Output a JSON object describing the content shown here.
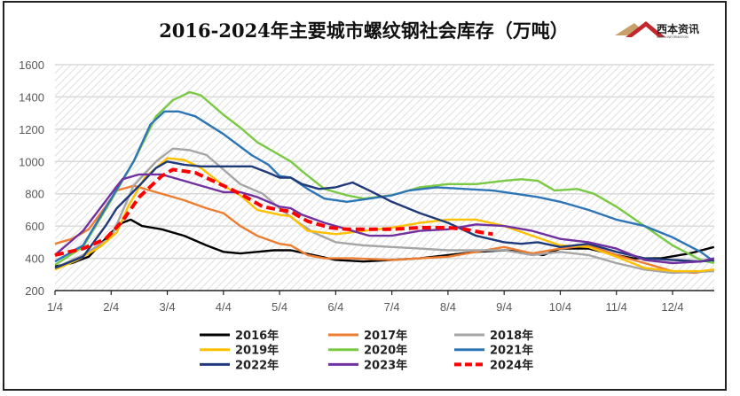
{
  "chart_data": {
    "type": "line",
    "title": "2016-2024年主要城市螺纹钢社会库存（万吨）",
    "xlabel": "",
    "ylabel": "",
    "ylim": [
      200,
      1600
    ],
    "yticks": [
      200,
      400,
      600,
      800,
      1000,
      1200,
      1400,
      1600
    ],
    "x_unit": "months since 1/4",
    "xlim": [
      0,
      11.74
    ],
    "xtick_labels": [
      "1/4",
      "2/4",
      "3/4",
      "4/4",
      "5/4",
      "6/4",
      "7/4",
      "8/4",
      "9/4",
      "10/4",
      "11/4",
      "12/4"
    ],
    "grid": true,
    "legend_position": "bottom",
    "series": [
      {
        "name": "2016年",
        "color": "#000000",
        "dashed": false,
        "points": [
          [
            0,
            350
          ],
          [
            0.3,
            370
          ],
          [
            0.6,
            410
          ],
          [
            1.0,
            560
          ],
          [
            1.2,
            620
          ],
          [
            1.35,
            640
          ],
          [
            1.55,
            600
          ],
          [
            1.9,
            580
          ],
          [
            2.3,
            540
          ],
          [
            2.7,
            480
          ],
          [
            3.0,
            440
          ],
          [
            3.3,
            430
          ],
          [
            3.6,
            440
          ],
          [
            3.9,
            450
          ],
          [
            4.2,
            450
          ],
          [
            4.6,
            420
          ],
          [
            5.0,
            390
          ],
          [
            5.5,
            380
          ],
          [
            6.0,
            390
          ],
          [
            6.5,
            400
          ],
          [
            7.0,
            420
          ],
          [
            7.5,
            440
          ],
          [
            8.0,
            450
          ],
          [
            8.3,
            440
          ],
          [
            8.7,
            420
          ],
          [
            9.0,
            460
          ],
          [
            9.5,
            460
          ],
          [
            10.0,
            420
          ],
          [
            10.3,
            400
          ],
          [
            10.8,
            400
          ],
          [
            11.3,
            430
          ],
          [
            11.74,
            470
          ]
        ]
      },
      {
        "name": "2017年",
        "color": "#ED7D31",
        "dashed": false,
        "points": [
          [
            0,
            490
          ],
          [
            0.3,
            520
          ],
          [
            0.6,
            580
          ],
          [
            0.9,
            720
          ],
          [
            1.1,
            820
          ],
          [
            1.4,
            850
          ],
          [
            1.7,
            820
          ],
          [
            2.0,
            790
          ],
          [
            2.3,
            760
          ],
          [
            2.7,
            710
          ],
          [
            3.0,
            680
          ],
          [
            3.3,
            600
          ],
          [
            3.6,
            540
          ],
          [
            4.0,
            490
          ],
          [
            4.2,
            480
          ],
          [
            4.5,
            420
          ],
          [
            4.8,
            400
          ],
          [
            5.3,
            400
          ],
          [
            6.0,
            390
          ],
          [
            6.5,
            400
          ],
          [
            7.0,
            410
          ],
          [
            7.5,
            440
          ],
          [
            8.0,
            470
          ],
          [
            8.5,
            430
          ],
          [
            9.0,
            460
          ],
          [
            9.5,
            480
          ],
          [
            10.0,
            420
          ],
          [
            10.5,
            370
          ],
          [
            11.0,
            320
          ],
          [
            11.4,
            310
          ],
          [
            11.74,
            330
          ]
        ]
      },
      {
        "name": "2018年",
        "color": "#A5A5A5",
        "dashed": false,
        "points": [
          [
            0,
            340
          ],
          [
            0.5,
            420
          ],
          [
            1.0,
            530
          ],
          [
            1.4,
            850
          ],
          [
            1.8,
            1000
          ],
          [
            2.1,
            1080
          ],
          [
            2.4,
            1070
          ],
          [
            2.7,
            1040
          ],
          [
            3.0,
            950
          ],
          [
            3.3,
            860
          ],
          [
            3.7,
            800
          ],
          [
            4.0,
            710
          ],
          [
            4.3,
            630
          ],
          [
            4.6,
            560
          ],
          [
            5.0,
            500
          ],
          [
            5.5,
            480
          ],
          [
            6.0,
            470
          ],
          [
            6.5,
            460
          ],
          [
            7.0,
            450
          ],
          [
            7.5,
            450
          ],
          [
            8.0,
            450
          ],
          [
            8.5,
            420
          ],
          [
            9.0,
            440
          ],
          [
            9.5,
            420
          ],
          [
            10.0,
            370
          ],
          [
            10.5,
            330
          ],
          [
            11.0,
            310
          ],
          [
            11.74,
            320
          ]
        ]
      },
      {
        "name": "2019年",
        "color": "#FFC000",
        "dashed": false,
        "points": [
          [
            0,
            330
          ],
          [
            0.4,
            390
          ],
          [
            0.8,
            470
          ],
          [
            1.1,
            560
          ],
          [
            1.3,
            720
          ],
          [
            1.6,
            900
          ],
          [
            2.0,
            1020
          ],
          [
            2.3,
            1010
          ],
          [
            2.6,
            960
          ],
          [
            3.0,
            850
          ],
          [
            3.3,
            790
          ],
          [
            3.6,
            700
          ],
          [
            4.0,
            670
          ],
          [
            4.2,
            660
          ],
          [
            4.5,
            570
          ],
          [
            5.0,
            550
          ],
          [
            5.5,
            570
          ],
          [
            6.0,
            590
          ],
          [
            6.5,
            620
          ],
          [
            7.0,
            640
          ],
          [
            7.5,
            640
          ],
          [
            8.0,
            600
          ],
          [
            8.5,
            540
          ],
          [
            9.0,
            480
          ],
          [
            9.5,
            470
          ],
          [
            10.0,
            410
          ],
          [
            10.5,
            340
          ],
          [
            11.0,
            320
          ],
          [
            11.5,
            320
          ],
          [
            11.74,
            330
          ]
        ]
      },
      {
        "name": "2020年",
        "color": "#7AC943",
        "dashed": false,
        "points": [
          [
            0,
            360
          ],
          [
            0.5,
            470
          ],
          [
            1.0,
            760
          ],
          [
            1.4,
            1000
          ],
          [
            1.8,
            1280
          ],
          [
            2.1,
            1380
          ],
          [
            2.4,
            1430
          ],
          [
            2.6,
            1410
          ],
          [
            3.0,
            1290
          ],
          [
            3.3,
            1210
          ],
          [
            3.6,
            1120
          ],
          [
            4.0,
            1040
          ],
          [
            4.2,
            1000
          ],
          [
            4.4,
            940
          ],
          [
            4.8,
            830
          ],
          [
            5.2,
            790
          ],
          [
            5.5,
            770
          ],
          [
            6.0,
            790
          ],
          [
            6.5,
            840
          ],
          [
            7.0,
            860
          ],
          [
            7.5,
            860
          ],
          [
            8.0,
            880
          ],
          [
            8.3,
            890
          ],
          [
            8.6,
            880
          ],
          [
            8.9,
            820
          ],
          [
            9.3,
            830
          ],
          [
            9.6,
            800
          ],
          [
            10.0,
            720
          ],
          [
            10.5,
            600
          ],
          [
            11.0,
            480
          ],
          [
            11.5,
            390
          ],
          [
            11.74,
            370
          ]
        ]
      },
      {
        "name": "2021年",
        "color": "#2E75B6",
        "dashed": false,
        "points": [
          [
            0,
            380
          ],
          [
            0.5,
            480
          ],
          [
            1.0,
            770
          ],
          [
            1.4,
            1000
          ],
          [
            1.7,
            1230
          ],
          [
            1.95,
            1310
          ],
          [
            2.2,
            1310
          ],
          [
            2.5,
            1280
          ],
          [
            3.0,
            1170
          ],
          [
            3.5,
            1040
          ],
          [
            3.8,
            980
          ],
          [
            4.0,
            910
          ],
          [
            4.2,
            900
          ],
          [
            4.5,
            830
          ],
          [
            4.8,
            770
          ],
          [
            5.2,
            750
          ],
          [
            5.6,
            770
          ],
          [
            6.0,
            790
          ],
          [
            6.3,
            820
          ],
          [
            6.8,
            840
          ],
          [
            7.3,
            830
          ],
          [
            7.8,
            820
          ],
          [
            8.2,
            800
          ],
          [
            8.6,
            780
          ],
          [
            9.0,
            750
          ],
          [
            9.5,
            700
          ],
          [
            10.0,
            640
          ],
          [
            10.5,
            600
          ],
          [
            11.0,
            530
          ],
          [
            11.5,
            440
          ],
          [
            11.74,
            380
          ]
        ]
      },
      {
        "name": "2022年",
        "color": "#1F3A7A",
        "dashed": false,
        "points": [
          [
            0,
            340
          ],
          [
            0.5,
            410
          ],
          [
            0.9,
            600
          ],
          [
            1.1,
            710
          ],
          [
            1.5,
            850
          ],
          [
            1.8,
            960
          ],
          [
            2.0,
            1000
          ],
          [
            2.3,
            980
          ],
          [
            2.6,
            970
          ],
          [
            3.0,
            970
          ],
          [
            3.5,
            970
          ],
          [
            3.8,
            930
          ],
          [
            4.0,
            900
          ],
          [
            4.2,
            900
          ],
          [
            4.4,
            860
          ],
          [
            4.7,
            830
          ],
          [
            5.0,
            840
          ],
          [
            5.3,
            870
          ],
          [
            5.6,
            820
          ],
          [
            6.0,
            750
          ],
          [
            6.5,
            680
          ],
          [
            7.0,
            620
          ],
          [
            7.5,
            540
          ],
          [
            8.0,
            500
          ],
          [
            8.3,
            490
          ],
          [
            8.6,
            500
          ],
          [
            9.0,
            470
          ],
          [
            9.5,
            490
          ],
          [
            10.0,
            440
          ],
          [
            10.5,
            400
          ],
          [
            11.0,
            390
          ],
          [
            11.5,
            380
          ],
          [
            11.74,
            390
          ]
        ]
      },
      {
        "name": "2023年",
        "color": "#7030A0",
        "dashed": false,
        "points": [
          [
            0,
            420
          ],
          [
            0.5,
            570
          ],
          [
            1.0,
            800
          ],
          [
            1.2,
            890
          ],
          [
            1.5,
            920
          ],
          [
            1.9,
            920
          ],
          [
            2.3,
            880
          ],
          [
            2.6,
            850
          ],
          [
            3.0,
            810
          ],
          [
            3.3,
            810
          ],
          [
            3.6,
            780
          ],
          [
            4.0,
            720
          ],
          [
            4.2,
            710
          ],
          [
            4.4,
            670
          ],
          [
            4.8,
            620
          ],
          [
            5.2,
            580
          ],
          [
            5.6,
            540
          ],
          [
            6.0,
            540
          ],
          [
            6.5,
            570
          ],
          [
            7.0,
            580
          ],
          [
            7.5,
            610
          ],
          [
            8.0,
            600
          ],
          [
            8.5,
            570
          ],
          [
            9.0,
            520
          ],
          [
            9.5,
            500
          ],
          [
            10.0,
            460
          ],
          [
            10.5,
            390
          ],
          [
            11.0,
            370
          ],
          [
            11.5,
            380
          ],
          [
            11.74,
            400
          ]
        ]
      },
      {
        "name": "2024年",
        "color": "#FF0000",
        "dashed": true,
        "points": [
          [
            0,
            420
          ],
          [
            0.5,
            460
          ],
          [
            0.9,
            520
          ],
          [
            1.2,
            630
          ],
          [
            1.5,
            780
          ],
          [
            1.9,
            910
          ],
          [
            2.1,
            950
          ],
          [
            2.5,
            930
          ],
          [
            3.0,
            850
          ],
          [
            3.3,
            800
          ],
          [
            3.7,
            720
          ],
          [
            4.0,
            700
          ],
          [
            4.2,
            690
          ],
          [
            4.5,
            630
          ],
          [
            4.9,
            590
          ],
          [
            5.2,
            580
          ],
          [
            5.6,
            580
          ],
          [
            6.0,
            580
          ],
          [
            6.5,
            590
          ],
          [
            7.0,
            590
          ],
          [
            7.3,
            580
          ],
          [
            7.6,
            560
          ],
          [
            7.8,
            550
          ]
        ]
      }
    ]
  },
  "logo": {
    "cn": "西本资讯",
    "en": "XIBEN INFORMATION"
  }
}
